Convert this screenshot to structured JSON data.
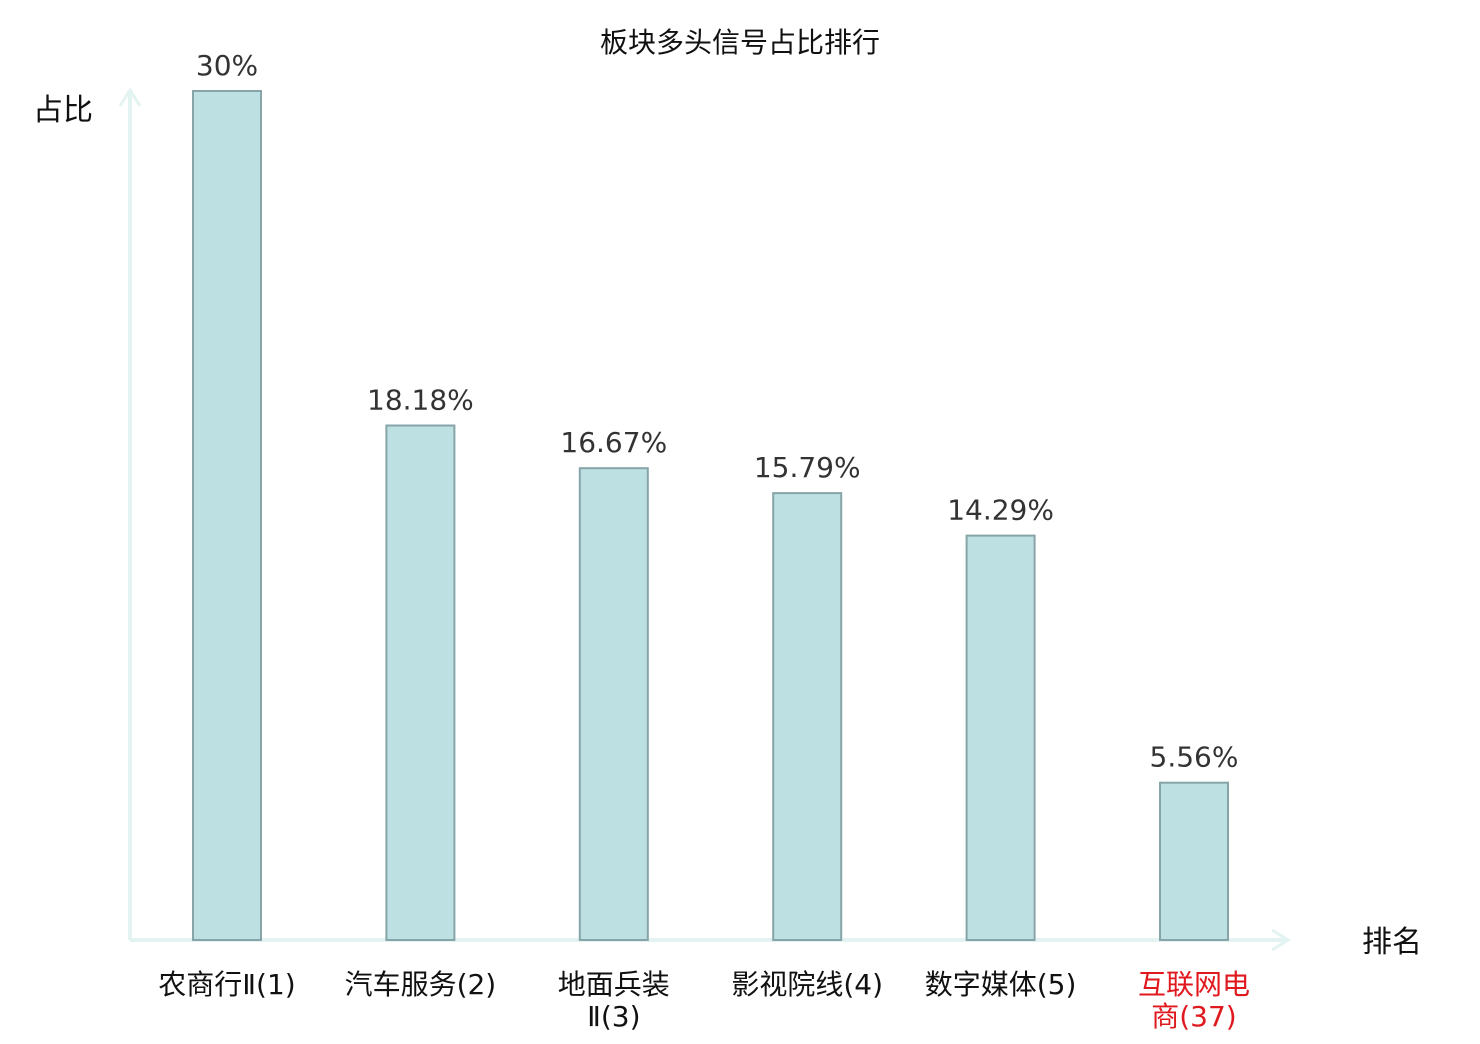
{
  "chart_data": {
    "type": "bar",
    "title": "板块多头信号占比排行",
    "ylabel": "占比",
    "xlabel": "排名",
    "categories": [
      "农商行Ⅱ(1)",
      "汽车服务(2)",
      "地面兵装Ⅱ(3)",
      "影视院线(4)",
      "数字媒体(5)",
      "互联网电商(37)"
    ],
    "category_lines": [
      [
        "农商行Ⅱ(1)"
      ],
      [
        "汽车服务(2)"
      ],
      [
        "地面兵装",
        "Ⅱ(3)"
      ],
      [
        "影视院线(4)"
      ],
      [
        "数字媒体(5)"
      ],
      [
        "互联网电",
        "商(37)"
      ]
    ],
    "values": [
      30,
      18.18,
      16.67,
      15.79,
      14.29,
      5.56
    ],
    "value_labels": [
      "30%",
      "18.18%",
      "16.67%",
      "15.79%",
      "14.29%",
      "5.56%"
    ],
    "ylim": [
      0,
      30
    ],
    "grid": false,
    "legend": "none",
    "highlight_index": 5,
    "colors": {
      "bar_fill": "#bde0e2",
      "bar_stroke": "#87a5a8",
      "axis": "#e3f3f1",
      "text": "#333333",
      "highlight_text": "#e0191f"
    }
  }
}
